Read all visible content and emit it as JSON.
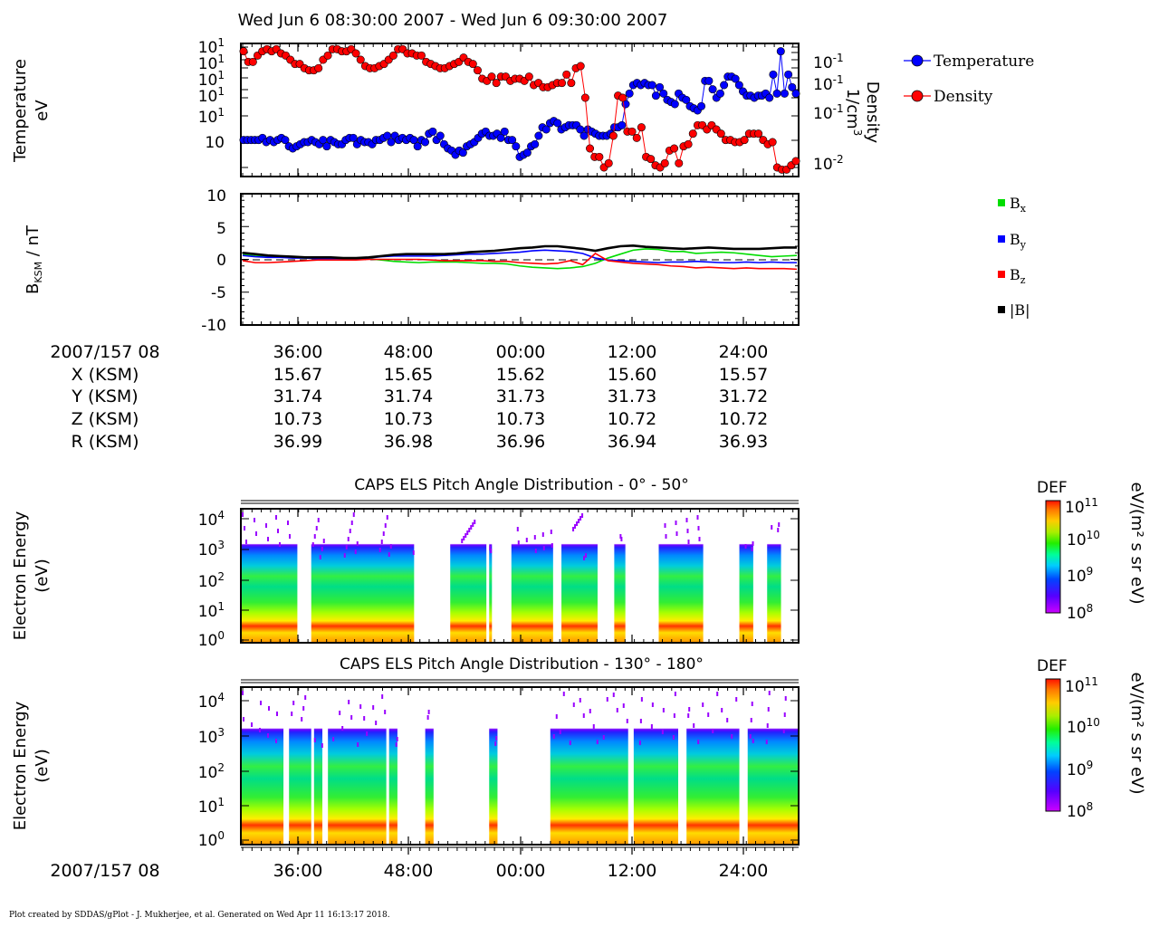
{
  "title": "Wed Jun 6 08:30:00 2007 - Wed Jun 6 09:30:00 2007",
  "footer": "Plot created by SDDAS/gPlot - J. Mukherjee, et al.  Generated on Wed Apr 11 16:13:17 2018.",
  "colors": {
    "temperature": "#0000ff",
    "density": "#ff0000",
    "bx": "#00dd00",
    "by": "#0000ff",
    "bz": "#ff0000",
    "btot": "#000000"
  },
  "chart_data": [
    {
      "type": "line",
      "panel": "moments",
      "ylabel_line1": "Temperature",
      "ylabel_line2": "eV",
      "y2label_line1": "Density",
      "y2label_line2": "1/cm",
      "y2label_sup": "3",
      "left_ticks": [
        "10",
        "10",
        "10",
        "10",
        "10",
        "10"
      ],
      "left_tick_exps": [
        "1",
        "1",
        "1",
        "1",
        "1",
        ""
      ],
      "right_ticks": [
        "10",
        "10",
        "10",
        "10"
      ],
      "right_tick_exps": [
        "-1",
        "-1",
        "-1",
        "-2"
      ],
      "legend_placement": "top-right",
      "series": [
        {
          "name": "Temperature",
          "values": [
            1.6,
            1.6,
            1.6,
            1.6,
            1.6,
            1.7,
            1.5,
            1.6,
            1.5,
            1.6,
            1.7,
            1.6,
            1.3,
            1.2,
            1.3,
            1.4,
            1.5,
            1.5,
            1.6,
            1.5,
            1.4,
            1.6,
            1.3,
            1.6,
            1.5,
            1.4,
            1.4,
            1.6,
            1.7,
            1.7,
            1.4,
            1.6,
            1.5,
            1.5,
            1.4,
            1.6,
            1.6,
            1.7,
            1.8,
            1.5,
            1.8,
            1.6,
            1.7,
            1.6,
            1.7,
            1.6,
            1.3,
            1.6,
            1.5,
            1.9,
            2,
            1.6,
            1.8,
            1.4,
            1.2,
            1.1,
            0.9,
            1.1,
            1,
            1.3,
            1.4,
            1.5,
            1.7,
            1.9,
            2,
            1.8,
            1.8,
            1.9,
            1.7,
            2,
            1.6,
            1.6,
            1.3,
            0.8,
            0.9,
            1,
            1.3,
            1.4,
            1.8,
            2.2,
            2.1,
            2.4,
            2.5,
            2.4,
            2.1,
            2.2,
            2.3,
            2.3,
            2.3,
            2.1,
            1.8,
            2.1,
            2,
            1.9,
            1.8,
            1.8,
            1.8,
            1.9,
            2.2,
            2.2,
            2.3,
            3.3,
            3.8,
            4.2,
            4.3,
            4.2,
            4.3,
            4.2,
            4.2,
            3.7,
            4.1,
            3.8,
            3.5,
            3.4,
            3.3,
            3.8,
            3.6,
            3.5,
            3.2,
            3.1,
            3,
            3.2,
            4.4,
            4.4,
            4,
            3.6,
            3.8,
            4.2,
            4.6,
            4.6,
            4.5,
            4.2,
            3.9,
            3.7,
            3.7,
            3.6,
            3.7,
            3.7,
            3.8,
            3.6,
            4.7,
            3.8,
            5.8,
            3.8,
            4.7,
            4.1,
            3.8
          ]
        },
        {
          "name": "Density",
          "values": [
            5.8,
            5.3,
            5.3,
            5.6,
            5.8,
            5.9,
            5.8,
            5.9,
            5.7,
            5.6,
            5.4,
            5.2,
            5.2,
            5,
            4.9,
            4.9,
            5,
            5.4,
            5.6,
            5.9,
            5.9,
            5.8,
            5.8,
            5.9,
            5.7,
            5.4,
            5.1,
            5,
            5,
            5.1,
            5.2,
            5.4,
            5.6,
            5.9,
            5.9,
            5.7,
            5.7,
            5.6,
            5.6,
            5.3,
            5.2,
            5.1,
            5,
            5,
            5.1,
            5.2,
            5.3,
            5.5,
            5.3,
            5.2,
            4.9,
            4.5,
            4.4,
            4.6,
            4.3,
            4.6,
            4.6,
            4.4,
            4.5,
            4.5,
            4.4,
            4.6,
            4.2,
            4.3,
            4.1,
            4.1,
            4.2,
            4.3,
            4.3,
            4.7,
            4.3,
            5,
            5.1,
            3.6,
            1.2,
            0.8,
            0.8,
            0.3,
            0.5,
            1.8,
            3.7,
            3.6,
            2,
            2,
            1.7,
            2.2,
            0.8,
            0.7,
            0.4,
            0.3,
            0.5,
            1.1,
            1.2,
            0.5,
            1.3,
            1.4,
            1.9,
            2.3,
            2.3,
            2.1,
            2.3,
            2.1,
            1.9,
            1.6,
            1.6,
            1.5,
            1.5,
            1.6,
            1.9,
            1.9,
            1.9,
            1.6,
            1.4,
            1.5,
            0.3,
            0.2,
            0.2,
            0.4,
            0.6
          ]
        }
      ]
    },
    {
      "type": "line",
      "panel": "magnetic-field",
      "ylabel": "B",
      "ylabel_sub": "KSM",
      "ylabel_unit": " / nT",
      "ylim": [
        -10,
        10
      ],
      "y_ticks": [
        "10",
        "5",
        "0",
        "-5",
        "-10"
      ],
      "legend_placement": "right",
      "series": [
        {
          "name": "B",
          "sub": "x",
          "values": [
            0.8,
            0.5,
            0.5,
            0.4,
            0.3,
            0.2,
            0.1,
            0.1,
            0,
            0.1,
            0.1,
            -0.1,
            -0.3,
            -0.4,
            -0.5,
            -0.4,
            -0.4,
            -0.4,
            -0.5,
            -0.6,
            -0.6,
            -0.7,
            -1,
            -1.2,
            -1.3,
            -1.4,
            -1.3,
            -1.1,
            -0.6,
            0.2,
            0.8,
            1.4,
            1.6,
            1.5,
            1.2,
            1.2,
            0.9,
            1,
            1.1,
            1,
            0.8,
            0.6,
            0.4,
            0.5,
            0.6
          ]
        },
        {
          "name": "B",
          "sub": "y",
          "values": [
            0.6,
            0.4,
            0.3,
            0.3,
            0.2,
            0.2,
            0.1,
            0.1,
            0.1,
            0.1,
            0.2,
            0.4,
            0.5,
            0.5,
            0.5,
            0.5,
            0.6,
            0.7,
            0.8,
            0.8,
            0.9,
            1,
            1.1,
            1.3,
            1.4,
            1.3,
            1.2,
            0.9,
            0.2,
            -0.1,
            -0.2,
            -0.3,
            -0.4,
            -0.5,
            -0.4,
            -0.4,
            -0.3,
            -0.4,
            -0.5,
            -0.5,
            -0.4,
            -0.5,
            -0.4,
            -0.5,
            -0.5
          ]
        },
        {
          "name": "B",
          "sub": "z",
          "values": [
            -0.2,
            -0.5,
            -0.5,
            -0.4,
            -0.3,
            -0.2,
            -0.1,
            -0.1,
            -0.1,
            -0.1,
            0,
            0,
            0,
            0,
            0,
            -0.1,
            -0.2,
            -0.2,
            -0.2,
            -0.2,
            -0.3,
            -0.3,
            -0.5,
            -0.6,
            -0.7,
            -0.6,
            -0.2,
            -0.8,
            0.9,
            -0.2,
            -0.4,
            -0.6,
            -0.7,
            -0.8,
            -1,
            -1.1,
            -1.3,
            -1.2,
            -1.3,
            -1.4,
            -1.3,
            -1.4,
            -1.4,
            -1.4,
            -1.5
          ]
        },
        {
          "name": "|B|",
          "sub": "",
          "values": [
            1,
            0.8,
            0.6,
            0.5,
            0.4,
            0.3,
            0.3,
            0.3,
            0.2,
            0.2,
            0.3,
            0.5,
            0.7,
            0.8,
            0.8,
            0.8,
            0.8,
            0.9,
            1.1,
            1.2,
            1.3,
            1.5,
            1.7,
            1.8,
            2,
            2,
            1.8,
            1.6,
            1.3,
            1.7,
            2,
            2.1,
            1.9,
            1.8,
            1.7,
            1.6,
            1.7,
            1.8,
            1.7,
            1.6,
            1.6,
            1.6,
            1.7,
            1.8,
            1.8
          ]
        }
      ]
    },
    {
      "type": "heatmap",
      "panel": "els-pitch-0-50",
      "title": "CAPS ELS Pitch Angle Distribution - 0° - 50°",
      "ylabel_line1": "Electron Energy",
      "ylabel_line2": "(eV)",
      "y_tick_base": "10",
      "y_tick_exps": [
        "4",
        "3",
        "2",
        "1",
        "0"
      ],
      "colorbar_title": "DEF",
      "colorbar_unit": "eV/(m² s sr eV)",
      "colorbar_labels": [
        "10",
        "10",
        "10",
        "10"
      ],
      "colorbar_exps": [
        "11",
        "10",
        "9",
        "8"
      ],
      "data_intervals_fraction_of_axis": [
        [
          0,
          0.1
        ],
        [
          0.125,
          0.31
        ],
        [
          0.375,
          0.44
        ],
        [
          0.445,
          0.45
        ],
        [
          0.485,
          0.56
        ],
        [
          0.575,
          0.64
        ],
        [
          0.67,
          0.69
        ],
        [
          0.75,
          0.83
        ],
        [
          0.895,
          0.92
        ],
        [
          0.945,
          0.97
        ]
      ]
    },
    {
      "type": "heatmap",
      "panel": "els-pitch-130-180",
      "title": "CAPS ELS Pitch Angle Distribution - 130° - 180°",
      "ylabel_line1": "Electron Energy",
      "ylabel_line2": "(eV)",
      "y_tick_base": "10",
      "y_tick_exps": [
        "4",
        "3",
        "2",
        "1",
        "0"
      ],
      "colorbar_title": "DEF",
      "colorbar_unit": "eV/(m² s sr eV)",
      "colorbar_labels": [
        "10",
        "10",
        "10",
        "10"
      ],
      "colorbar_exps": [
        "11",
        "10",
        "9",
        "8"
      ],
      "data_intervals_fraction_of_axis": [
        [
          0,
          0.075
        ],
        [
          0.085,
          0.125
        ],
        [
          0.13,
          0.145
        ],
        [
          0.155,
          0.26
        ],
        [
          0.265,
          0.28
        ],
        [
          0.33,
          0.345
        ],
        [
          0.445,
          0.46
        ],
        [
          0.555,
          0.695
        ],
        [
          0.705,
          0.785
        ],
        [
          0.8,
          0.895
        ],
        [
          0.91,
          1
        ]
      ]
    }
  ],
  "ephemeris": {
    "header": "2007/157 08",
    "ticks": [
      "36:00",
      "48:00",
      "00:00",
      "12:00",
      "24:00"
    ],
    "rows": [
      {
        "label": "X (KSM)",
        "values": [
          "15.67",
          "15.65",
          "15.62",
          "15.60",
          "15.57"
        ]
      },
      {
        "label": "Y (KSM)",
        "values": [
          "31.74",
          "31.74",
          "31.73",
          "31.73",
          "31.72"
        ]
      },
      {
        "label": "Z (KSM)",
        "values": [
          "10.73",
          "10.73",
          "10.73",
          "10.72",
          "10.72"
        ]
      },
      {
        "label": "R (KSM)",
        "values": [
          "36.99",
          "36.98",
          "36.96",
          "36.94",
          "36.93"
        ]
      }
    ]
  },
  "bottom_axis": {
    "header": "2007/157 08",
    "ticks": [
      "36:00",
      "48:00",
      "00:00",
      "12:00",
      "24:00"
    ]
  }
}
